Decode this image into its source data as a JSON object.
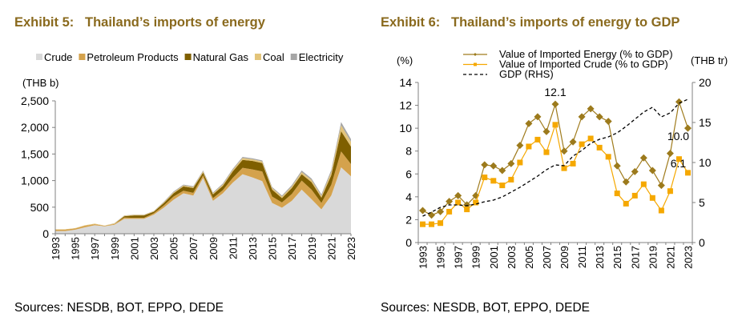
{
  "chart_data": [
    {
      "type": "area",
      "stacked": true,
      "title": "Exhibit 5:   Thailand’s imports of energy",
      "ylabel": "(THB b)",
      "ylim": [
        0,
        2500
      ],
      "yticks": [
        0,
        500,
        1000,
        1500,
        2000,
        2500
      ],
      "ytick_labels": [
        "0",
        "500",
        "1,000",
        "1,500",
        "2,000",
        "2,500"
      ],
      "x": [
        1993,
        1994,
        1995,
        1996,
        1997,
        1998,
        1999,
        2000,
        2001,
        2002,
        2003,
        2004,
        2005,
        2006,
        2007,
        2008,
        2009,
        2010,
        2011,
        2012,
        2013,
        2014,
        2015,
        2016,
        2017,
        2018,
        2019,
        2020,
        2021,
        2022,
        2023
      ],
      "xtick_labels": [
        "1993",
        "1995",
        "1997",
        "1999",
        "2001",
        "2003",
        "2005",
        "2007",
        "2009",
        "2011",
        "2013",
        "2015",
        "2017",
        "2019",
        "2021",
        "2023"
      ],
      "legend_position": "top",
      "grid": false,
      "series": [
        {
          "name": "Crude",
          "color": "#d9d9d9",
          "values": [
            50,
            50,
            75,
            120,
            160,
            140,
            170,
            280,
            280,
            280,
            360,
            490,
            640,
            760,
            720,
            1050,
            620,
            760,
            960,
            1120,
            1060,
            990,
            580,
            490,
            620,
            830,
            650,
            460,
            720,
            1250,
            1080
          ]
        },
        {
          "name": "Petroleum Products",
          "color": "#d4a24c",
          "values": [
            30,
            30,
            25,
            30,
            20,
            10,
            15,
            25,
            20,
            20,
            25,
            40,
            60,
            50,
            50,
            50,
            50,
            60,
            90,
            120,
            150,
            180,
            120,
            100,
            130,
            170,
            180,
            120,
            200,
            300,
            230
          ]
        },
        {
          "name": "Natural Gas",
          "color": "#7f5f00",
          "values": [
            0,
            0,
            0,
            0,
            0,
            0,
            0,
            25,
            45,
            45,
            30,
            45,
            60,
            80,
            90,
            50,
            70,
            80,
            120,
            150,
            160,
            160,
            130,
            80,
            110,
            120,
            140,
            100,
            180,
            380,
            330
          ]
        },
        {
          "name": "Coal",
          "color": "#e3c47a",
          "values": [
            5,
            5,
            5,
            10,
            10,
            5,
            10,
            10,
            10,
            10,
            10,
            15,
            20,
            20,
            20,
            25,
            20,
            25,
            30,
            35,
            30,
            30,
            30,
            30,
            30,
            40,
            40,
            30,
            60,
            110,
            90
          ]
        },
        {
          "name": "Electricity",
          "color": "#a6a6a6",
          "values": [
            0,
            0,
            0,
            0,
            0,
            0,
            5,
            5,
            5,
            5,
            5,
            10,
            15,
            15,
            15,
            15,
            15,
            20,
            20,
            20,
            20,
            20,
            20,
            20,
            25,
            30,
            30,
            30,
            40,
            60,
            50
          ]
        }
      ]
    },
    {
      "type": "line",
      "title": "Exhibit 6:   Thailand’s imports of energy to GDP",
      "ylabel": "(%)",
      "ylabel_right": "(THB tr)",
      "ylim": [
        0,
        14
      ],
      "ylim_right": [
        0,
        20
      ],
      "yticks": [
        0,
        2,
        4,
        6,
        8,
        10,
        12,
        14
      ],
      "yticks_right": [
        0,
        5,
        10,
        15,
        20
      ],
      "x": [
        1993,
        1994,
        1995,
        1996,
        1997,
        1998,
        1999,
        2000,
        2001,
        2002,
        2003,
        2004,
        2005,
        2006,
        2007,
        2008,
        2009,
        2010,
        2011,
        2012,
        2013,
        2014,
        2015,
        2016,
        2017,
        2018,
        2019,
        2020,
        2021,
        2022,
        2023
      ],
      "xtick_labels": [
        "1993",
        "1995",
        "1997",
        "1999",
        "2001",
        "2003",
        "2005",
        "2007",
        "2009",
        "2011",
        "2013",
        "2015",
        "2017",
        "2019",
        "2021",
        "2023"
      ],
      "legend_position": "top",
      "grid": false,
      "series": [
        {
          "name": "Value of Imported Energy (% to GDP)",
          "color": "#a07c1e",
          "marker": "diamond",
          "axis": "left",
          "values": [
            2.8,
            2.4,
            2.7,
            3.6,
            4.1,
            3.3,
            4.1,
            6.8,
            6.7,
            6.3,
            6.9,
            8.5,
            10.4,
            11.0,
            9.7,
            12.1,
            8.0,
            8.8,
            11.0,
            11.7,
            11.0,
            10.6,
            6.7,
            5.3,
            6.2,
            7.4,
            6.3,
            5.0,
            7.8,
            12.3,
            10.0
          ]
        },
        {
          "name": "Value of Imported Crude (% to GDP)",
          "color": "#f5a800",
          "marker": "square",
          "axis": "left",
          "values": [
            1.6,
            1.6,
            1.7,
            2.7,
            3.5,
            2.9,
            3.5,
            5.7,
            5.4,
            5.0,
            5.5,
            7.0,
            8.4,
            9.0,
            7.9,
            10.3,
            6.5,
            6.9,
            8.6,
            9.1,
            8.3,
            7.5,
            4.3,
            3.4,
            4.1,
            5.1,
            3.9,
            2.8,
            4.5,
            7.3,
            6.1
          ]
        },
        {
          "name": "GDP (RHS)",
          "color": "#000000",
          "style": "dashed",
          "axis": "right",
          "values": [
            3.3,
            3.8,
            4.4,
            4.7,
            4.7,
            4.6,
            4.8,
            5.1,
            5.3,
            5.7,
            6.3,
            6.9,
            7.6,
            8.3,
            9.1,
            9.7,
            9.6,
            10.8,
            11.5,
            12.4,
            12.9,
            13.2,
            13.7,
            14.5,
            15.4,
            16.3,
            16.9,
            15.7,
            16.2,
            17.4,
            17.9
          ]
        }
      ],
      "annotations": [
        "12.1",
        "10.0",
        "6.1"
      ]
    }
  ],
  "sources": [
    "Sources: NESDB, BOT, EPPO, DEDE",
    "Sources: NESDB, BOT, EPPO, DEDE"
  ]
}
